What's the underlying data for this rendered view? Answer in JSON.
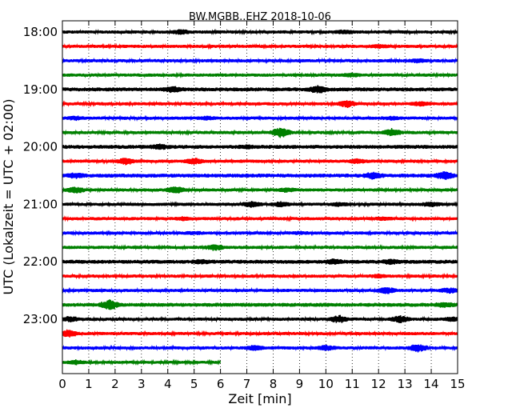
{
  "chart_data": {
    "type": "line",
    "title": "BW.MGBB..EHZ 2018-10-06",
    "xlabel": "Zeit  [min]",
    "ylabel": "UTC (Lokalzeit = UTC + 02:00)",
    "xlim": [
      0,
      15
    ],
    "x_ticks": [
      "0",
      "1",
      "2",
      "3",
      "4",
      "5",
      "6",
      "7",
      "8",
      "9",
      "10",
      "11",
      "12",
      "13",
      "14",
      "15"
    ],
    "y_ticks": [
      "18:00",
      "19:00",
      "20:00",
      "21:00",
      "22:00",
      "23:00"
    ],
    "grid": "vertical-dotted",
    "rows_per_hour": 4,
    "colors": [
      "#000000",
      "#ff0000",
      "#0000ff",
      "#008000"
    ],
    "traces": [
      {
        "start": "18:00",
        "end_min": 15,
        "amplitude": 1.0,
        "bursts": [
          [
            4.5,
            0.8
          ],
          [
            10.7,
            0.6
          ]
        ]
      },
      {
        "start": "18:15",
        "end_min": 15,
        "amplitude": 1.0,
        "bursts": [
          [
            12.0,
            0.5
          ]
        ]
      },
      {
        "start": "18:30",
        "end_min": 15,
        "amplitude": 1.0,
        "bursts": [
          [
            13.5,
            0.6
          ]
        ]
      },
      {
        "start": "18:45",
        "end_min": 15,
        "amplitude": 1.0,
        "bursts": [
          [
            11.0,
            0.7
          ]
        ]
      },
      {
        "start": "19:00",
        "end_min": 15,
        "amplitude": 1.2,
        "bursts": [
          [
            4.2,
            1.0
          ],
          [
            9.7,
            1.4
          ]
        ]
      },
      {
        "start": "19:15",
        "end_min": 15,
        "amplitude": 1.0,
        "bursts": [
          [
            10.8,
            1.5
          ],
          [
            13.6,
            0.8
          ]
        ]
      },
      {
        "start": "19:30",
        "end_min": 15,
        "amplitude": 1.0,
        "bursts": [
          [
            0.5,
            0.6
          ],
          [
            5.5,
            0.6
          ],
          [
            12.5,
            0.6
          ]
        ]
      },
      {
        "start": "19:45",
        "end_min": 15,
        "amplitude": 1.0,
        "bursts": [
          [
            8.3,
            2.2
          ],
          [
            12.5,
            1.5
          ]
        ]
      },
      {
        "start": "20:00",
        "end_min": 15,
        "amplitude": 1.2,
        "bursts": [
          [
            3.7,
            0.8
          ],
          [
            7.0,
            0.5
          ]
        ]
      },
      {
        "start": "20:15",
        "end_min": 15,
        "amplitude": 1.0,
        "bursts": [
          [
            2.4,
            1.4
          ],
          [
            5.0,
            1.2
          ],
          [
            11.2,
            0.8
          ]
        ]
      },
      {
        "start": "20:30",
        "end_min": 15,
        "amplitude": 1.2,
        "bursts": [
          [
            0.5,
            0.8
          ],
          [
            11.8,
            1.3
          ],
          [
            14.5,
            1.6
          ]
        ]
      },
      {
        "start": "20:45",
        "end_min": 15,
        "amplitude": 1.0,
        "bursts": [
          [
            0.5,
            1.2
          ],
          [
            4.3,
            1.4
          ],
          [
            8.5,
            0.8
          ]
        ]
      },
      {
        "start": "21:00",
        "end_min": 15,
        "amplitude": 1.0,
        "bursts": [
          [
            7.2,
            1.2
          ],
          [
            8.3,
            1.0
          ],
          [
            10.5,
            0.6
          ],
          [
            14.0,
            0.8
          ]
        ]
      },
      {
        "start": "21:15",
        "end_min": 15,
        "amplitude": 1.0,
        "bursts": [
          [
            4.6,
            0.6
          ],
          [
            12.2,
            0.5
          ]
        ]
      },
      {
        "start": "21:30",
        "end_min": 15,
        "amplitude": 1.0,
        "bursts": [
          [
            5.0,
            0.4
          ],
          [
            9.0,
            0.4
          ]
        ]
      },
      {
        "start": "21:45",
        "end_min": 15,
        "amplitude": 1.0,
        "bursts": [
          [
            5.8,
            1.2
          ]
        ]
      },
      {
        "start": "22:00",
        "end_min": 15,
        "amplitude": 1.2,
        "bursts": [
          [
            5.3,
            0.5
          ],
          [
            10.3,
            0.8
          ],
          [
            12.5,
            0.8
          ]
        ]
      },
      {
        "start": "22:15",
        "end_min": 15,
        "amplitude": 1.0,
        "bursts": [
          [
            12.0,
            0.6
          ]
        ]
      },
      {
        "start": "22:30",
        "end_min": 15,
        "amplitude": 1.0,
        "bursts": [
          [
            12.3,
            1.3
          ],
          [
            14.7,
            1.0
          ]
        ]
      },
      {
        "start": "22:45",
        "end_min": 15,
        "amplitude": 1.2,
        "bursts": [
          [
            1.8,
            2.0
          ],
          [
            14.5,
            0.8
          ]
        ]
      },
      {
        "start": "23:00",
        "end_min": 15,
        "amplitude": 1.0,
        "bursts": [
          [
            0.3,
            1.0
          ],
          [
            10.5,
            1.5
          ],
          [
            12.8,
            1.4
          ],
          [
            14.8,
            0.8
          ]
        ]
      },
      {
        "start": "23:15",
        "end_min": 15,
        "amplitude": 1.0,
        "bursts": [
          [
            0.2,
            1.6
          ]
        ]
      },
      {
        "start": "23:30",
        "end_min": 15,
        "amplitude": 1.0,
        "bursts": [
          [
            7.3,
            1.0
          ],
          [
            10.0,
            1.0
          ],
          [
            13.5,
            1.6
          ]
        ]
      },
      {
        "start": "23:45",
        "end_min": 6.0,
        "amplitude": 0.9,
        "bursts": [
          [
            0.5,
            0.8
          ]
        ]
      }
    ]
  }
}
